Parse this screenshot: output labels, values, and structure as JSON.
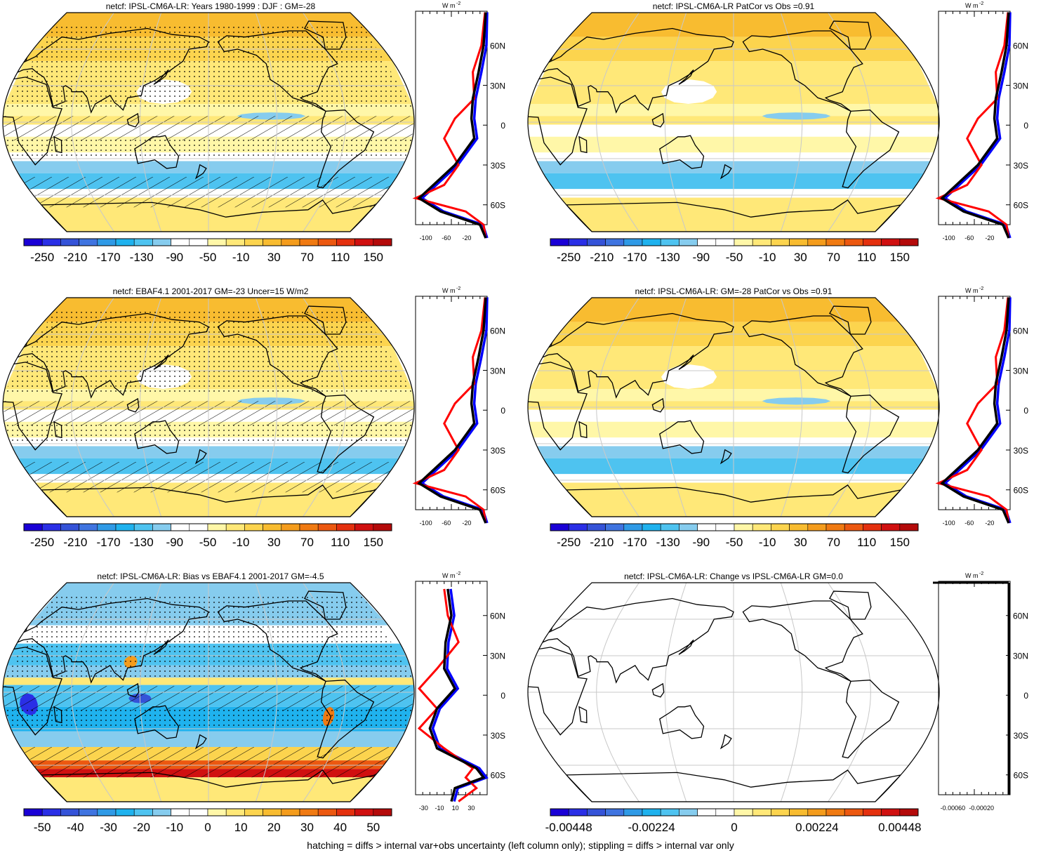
{
  "palette": [
    "#1a00d6",
    "#2a2fe6",
    "#3553d8",
    "#3f74e0",
    "#2f9ae6",
    "#1fb2ee",
    "#4ec3f0",
    "#86ccee",
    "#ffffff",
    "#ffffff",
    "#fff7a8",
    "#ffe878",
    "#fcd44e",
    "#f8bc30",
    "#f49c1c",
    "#f07a12",
    "#ec5810",
    "#e4300e",
    "#d01010",
    "#b40a0a"
  ],
  "colors": {
    "zonal_model": "#0000ff",
    "zonal_obs": "#ff0000",
    "zonal_mean": "#000000",
    "graticule": "#c8c8c8",
    "coast": "#000000"
  },
  "lat_ticks": [
    "60N",
    "30N",
    "0",
    "30S",
    "60S"
  ],
  "zonal_unit": "W m",
  "zonal_unit_sup": "-2",
  "panels": [
    {
      "id": "model-djf",
      "title": "netcf: IPSL-CM6A-LR: Years 1980-1999 : DJF : GM=-28",
      "colorbar_labels": [
        "-250",
        "-210",
        "-170",
        "-130",
        "-90",
        "-50",
        "-10",
        "30",
        "70",
        "110",
        "150"
      ],
      "zonal_ticks": [
        "-100",
        "-60",
        "-20"
      ],
      "hatched": true,
      "stippled": true,
      "mode": "mean"
    },
    {
      "id": "model-patcor",
      "title": "netcf: IPSL-CM6A-LR PatCor vs Obs =0.91",
      "colorbar_labels": [
        "-250",
        "-210",
        "-170",
        "-130",
        "-90",
        "-50",
        "-10",
        "30",
        "70",
        "110",
        "150"
      ],
      "zonal_ticks": [
        "-100",
        "-60",
        "-20"
      ],
      "hatched": false,
      "stippled": false,
      "mode": "mean"
    },
    {
      "id": "obs-ebaf",
      "title": "netcf: EBAF4.1 2001-2017 GM=-23 Uncer=15 W/m2",
      "colorbar_labels": [
        "-250",
        "-210",
        "-170",
        "-130",
        "-90",
        "-50",
        "-10",
        "30",
        "70",
        "110",
        "150"
      ],
      "zonal_ticks": [
        "-100",
        "-60",
        "-20"
      ],
      "hatched": true,
      "stippled": true,
      "mode": "mean"
    },
    {
      "id": "model-gm-patcor",
      "title": "netcf: IPSL-CM6A-LR: GM=-28 PatCor vs Obs =0.91",
      "colorbar_labels": [
        "-250",
        "-210",
        "-170",
        "-130",
        "-90",
        "-50",
        "-10",
        "30",
        "70",
        "110",
        "150"
      ],
      "zonal_ticks": [
        "-100",
        "-60",
        "-20"
      ],
      "hatched": false,
      "stippled": false,
      "mode": "mean"
    },
    {
      "id": "bias",
      "title": "netcf: IPSL-CM6A-LR: Bias vs EBAF4.1 2001-2017 GM=-4.5",
      "colorbar_labels": [
        "-50",
        "-40",
        "-30",
        "-20",
        "-10",
        "0",
        "10",
        "20",
        "30",
        "40",
        "50"
      ],
      "zonal_ticks": [
        "-30",
        "-10",
        "10",
        "30"
      ],
      "hatched": true,
      "stippled": true,
      "mode": "bias"
    },
    {
      "id": "change",
      "title": "netcf: IPSL-CM6A-LR: Change vs IPSL-CM6A-LR GM=0.0",
      "colorbar_labels": [
        "-0.00448",
        "-0.00224",
        "0",
        "0.00224",
        "0.00448"
      ],
      "zonal_ticks": [
        "-0.00060",
        "-0.00020"
      ],
      "hatched": false,
      "stippled": false,
      "mode": "blank"
    }
  ],
  "footer": "hatching = diffs > internal var+obs uncertainty (left column only); stippling = diffs > internal var only"
}
